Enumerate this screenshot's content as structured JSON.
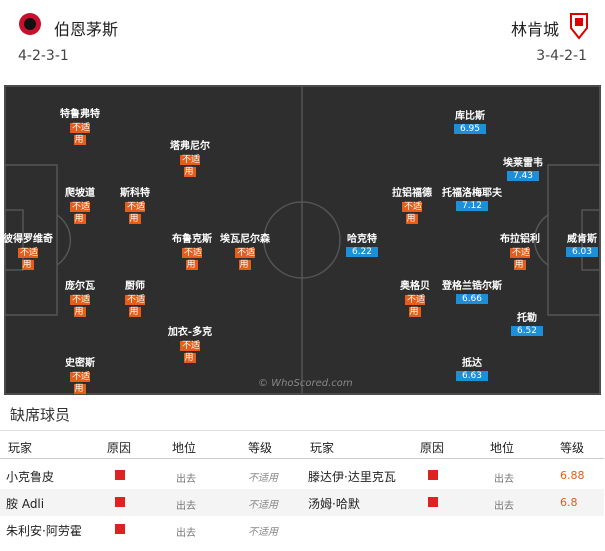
{
  "header": {
    "home": {
      "name": "伯恩茅斯",
      "formation": "4-2-3-1"
    },
    "away": {
      "name": "林肯城",
      "formation": "3-4-2-1"
    }
  },
  "pitch": {
    "watermark": "© WhoScored.com",
    "home_players": [
      {
        "name": "特鲁弗特",
        "rating": "不适用"
      },
      {
        "name": "塔弗尼尔",
        "rating": "不适用"
      },
      {
        "name": "爬坡道",
        "rating": "不适用"
      },
      {
        "name": "斯科特",
        "rating": "不适用"
      },
      {
        "name": "彼得罗维奇",
        "rating": "不适用"
      },
      {
        "name": "布鲁克斯",
        "rating": "不适用"
      },
      {
        "name": "埃瓦尼尔森",
        "rating": "不适用"
      },
      {
        "name": "庞尔瓦",
        "rating": "不适用"
      },
      {
        "name": "厨师",
        "rating": "不适用"
      },
      {
        "name": "加衣-多克",
        "rating": "不适用"
      },
      {
        "name": "史密斯",
        "rating": "不适用"
      }
    ],
    "away_players": [
      {
        "name": "库比斯",
        "rating": 6.95
      },
      {
        "name": "埃莱雷韦",
        "rating": 7.43
      },
      {
        "name": "拉铝福德",
        "rating": "不适用"
      },
      {
        "name": "托福洛梅耶夫",
        "rating": 7.12
      },
      {
        "name": "布拉铝利",
        "rating": "不适用"
      },
      {
        "name": "威肯斯",
        "rating": 6.03
      },
      {
        "name": "哈克特",
        "rating": 6.22
      },
      {
        "name": "奥格贝",
        "rating": "不适用"
      },
      {
        "name": "登格兰锆尔斯",
        "rating": 6.66
      },
      {
        "name": "托勒",
        "rating": 6.52
      },
      {
        "name": "抵达",
        "rating": 6.63
      }
    ]
  },
  "missing": {
    "title": "缺席球员",
    "headers": [
      "玩家",
      "原因",
      "地位",
      "等级"
    ],
    "home": [
      [
        "小克鲁皮",
        "出去",
        "不适用"
      ],
      [
        "胺 Adli",
        "出去",
        "不适用"
      ],
      [
        "朱利安·阿劳霍",
        "出去",
        "不适用"
      ]
    ],
    "away": [
      [
        "滕达伊·达里克瓦",
        "出去",
        6.88
      ],
      [
        "汤姆·哈默",
        "出去",
        6.8
      ]
    ]
  }
}
